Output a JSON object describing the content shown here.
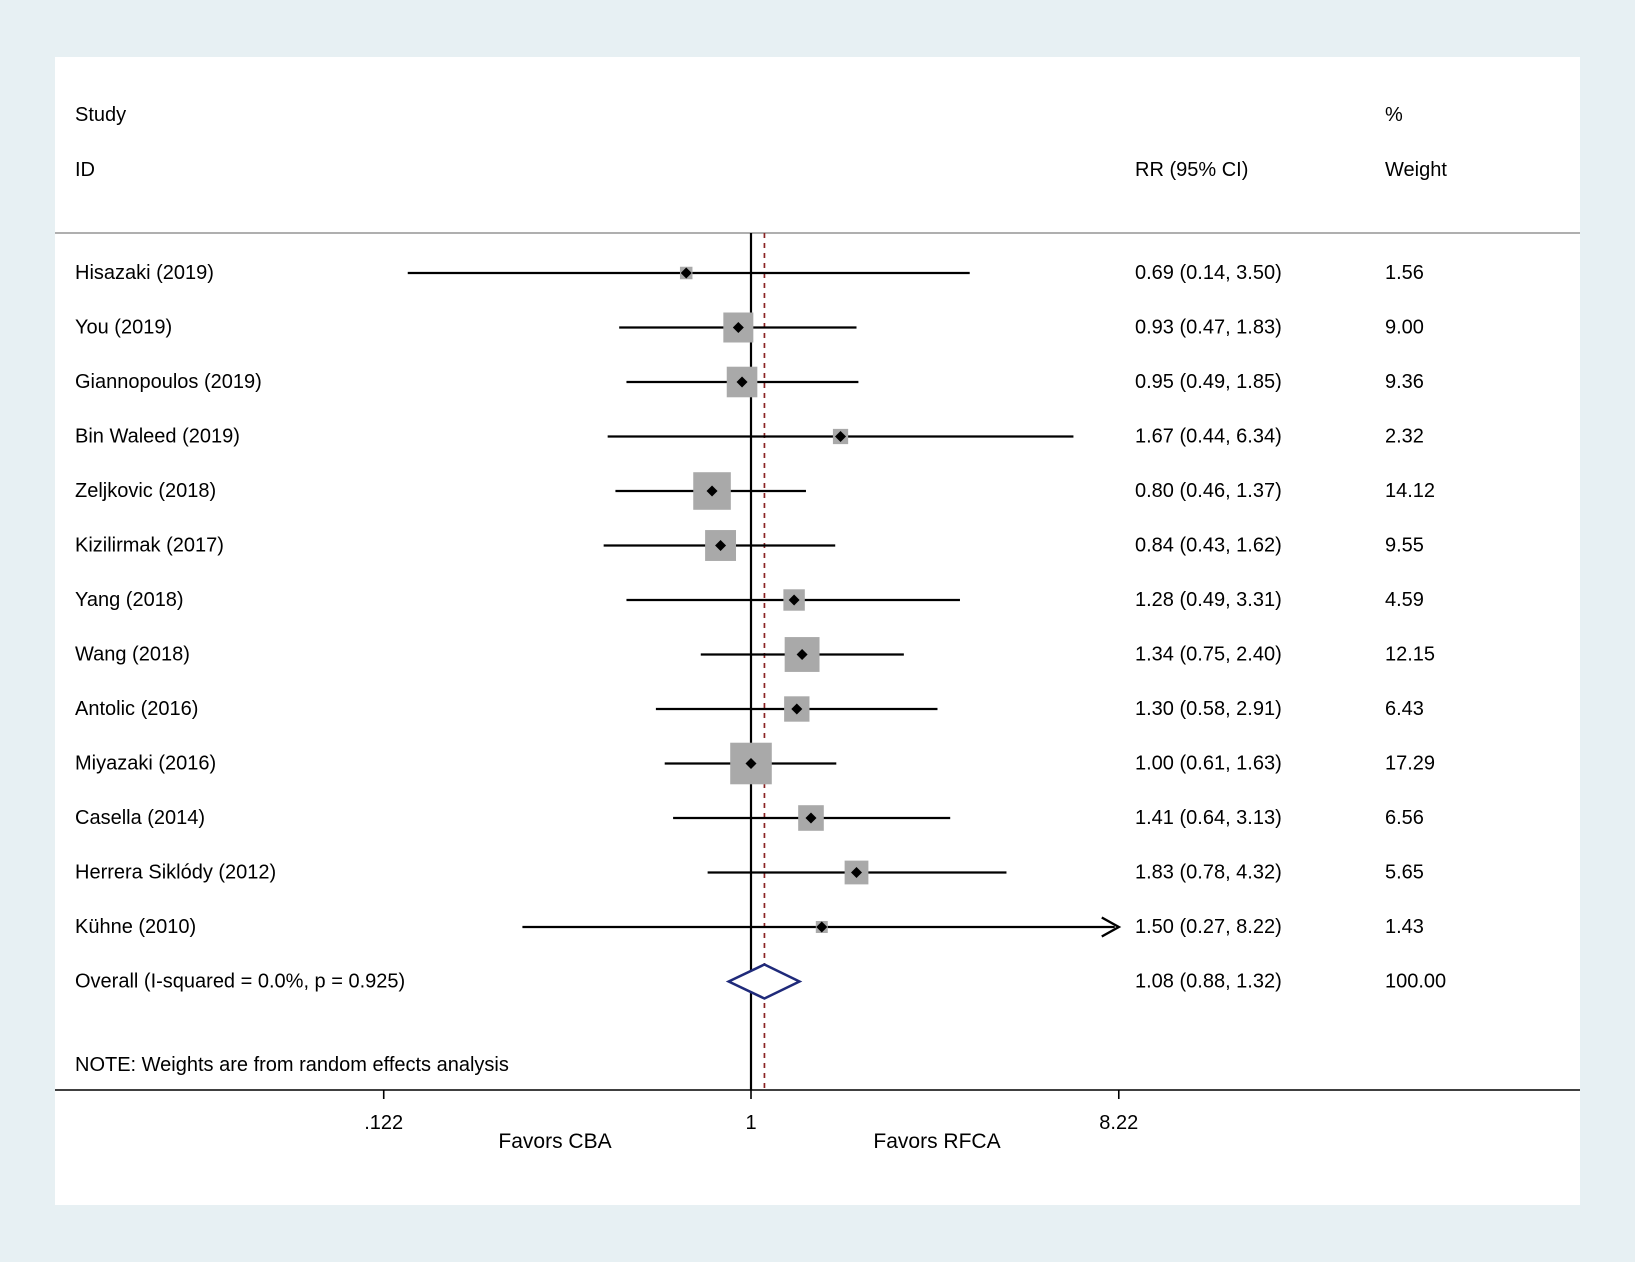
{
  "page": {
    "background": "#e7f0f3",
    "panel_background": "#ffffff"
  },
  "header": {
    "study_line1": "Study",
    "study_line2": "ID",
    "rr_col": "RR (95% CI)",
    "pct": "%",
    "weight_col": "Weight"
  },
  "note": "NOTE: Weights are from random effects analysis",
  "colors": {
    "ci_line": "#000000",
    "square": "#a9a9a9",
    "marker": "#000000",
    "dashed_line": "#8b2323",
    "diamond_outline": "#1f2a7a",
    "axis": "#000000",
    "header_line": "#7f7f7f",
    "text": "#000000"
  },
  "chart_data": {
    "type": "forest",
    "x_scale": "log10",
    "x_max": 8.22,
    "null_line": 1.0,
    "x_ticks": [
      {
        "value": 0.122,
        "label": ".122"
      },
      {
        "value": 1,
        "label": "1"
      },
      {
        "value": 8.22,
        "label": "8.22"
      }
    ],
    "x_axis_labels": {
      "left": "Favors CBA",
      "right": "Favors RFCA"
    },
    "studies": [
      {
        "id": "Hisazaki (2019)",
        "rr": 0.69,
        "lo": 0.14,
        "hi": 3.5,
        "rr_text": "0.69 (0.14, 3.50)",
        "weight": 1.56,
        "weight_text": "1.56"
      },
      {
        "id": "You (2019)",
        "rr": 0.93,
        "lo": 0.47,
        "hi": 1.83,
        "rr_text": "0.93 (0.47, 1.83)",
        "weight": 9.0,
        "weight_text": "9.00"
      },
      {
        "id": "Giannopoulos (2019)",
        "rr": 0.95,
        "lo": 0.49,
        "hi": 1.85,
        "rr_text": "0.95 (0.49, 1.85)",
        "weight": 9.36,
        "weight_text": "9.36"
      },
      {
        "id": "Bin Waleed (2019)",
        "rr": 1.67,
        "lo": 0.44,
        "hi": 6.34,
        "rr_text": "1.67 (0.44, 6.34)",
        "weight": 2.32,
        "weight_text": "2.32"
      },
      {
        "id": "Zeljkovic (2018)",
        "rr": 0.8,
        "lo": 0.46,
        "hi": 1.37,
        "rr_text": "0.80 (0.46, 1.37)",
        "weight": 14.12,
        "weight_text": "14.12"
      },
      {
        "id": "Kizilirmak (2017)",
        "rr": 0.84,
        "lo": 0.43,
        "hi": 1.62,
        "rr_text": "0.84 (0.43, 1.62)",
        "weight": 9.55,
        "weight_text": "9.55"
      },
      {
        "id": "Yang (2018)",
        "rr": 1.28,
        "lo": 0.49,
        "hi": 3.31,
        "rr_text": "1.28 (0.49, 3.31)",
        "weight": 4.59,
        "weight_text": "4.59"
      },
      {
        "id": "Wang (2018)",
        "rr": 1.34,
        "lo": 0.75,
        "hi": 2.4,
        "rr_text": "1.34 (0.75, 2.40)",
        "weight": 12.15,
        "weight_text": "12.15"
      },
      {
        "id": "Antolic (2016)",
        "rr": 1.3,
        "lo": 0.58,
        "hi": 2.91,
        "rr_text": "1.30 (0.58, 2.91)",
        "weight": 6.43,
        "weight_text": "6.43"
      },
      {
        "id": "Miyazaki (2016)",
        "rr": 1.0,
        "lo": 0.61,
        "hi": 1.63,
        "rr_text": "1.00 (0.61, 1.63)",
        "weight": 17.29,
        "weight_text": "17.29"
      },
      {
        "id": "Casella (2014)",
        "rr": 1.41,
        "lo": 0.64,
        "hi": 3.13,
        "rr_text": "1.41 (0.64, 3.13)",
        "weight": 6.56,
        "weight_text": "6.56"
      },
      {
        "id": "Herrera Siklódy (2012)",
        "rr": 1.83,
        "lo": 0.78,
        "hi": 4.32,
        "rr_text": "1.83 (0.78, 4.32)",
        "weight": 5.65,
        "weight_text": "5.65"
      },
      {
        "id": "Kühne (2010)",
        "rr": 1.5,
        "lo": 0.27,
        "hi": 8.22,
        "rr_text": "1.50 (0.27, 8.22)",
        "weight": 1.43,
        "weight_text": "1.43",
        "clip_hi": true
      }
    ],
    "overall": {
      "id": "Overall  (I-squared = 0.0%, p = 0.925)",
      "rr": 1.08,
      "lo": 0.88,
      "hi": 1.32,
      "rr_text": "1.08 (0.88, 1.32)",
      "weight_text": "100.00"
    }
  }
}
